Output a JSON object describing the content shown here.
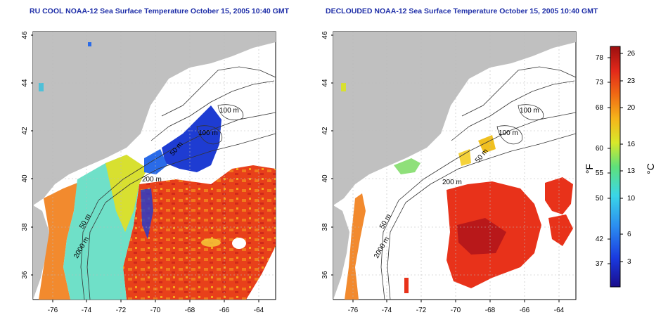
{
  "maps": [
    {
      "title": "RU COOL NOAA-12 Sea Surface Temperature October 15, 2005 10:40 GMT",
      "y_ticks": [
        "46",
        "44",
        "42",
        "40",
        "38",
        "36"
      ],
      "x_ticks": [
        "-76",
        "-74",
        "-72",
        "-70",
        "-68",
        "-66",
        "-64"
      ],
      "contour_labels": [
        "100 m",
        "100 m",
        "50 m",
        "200 m",
        "50 m",
        "2000 m"
      ]
    },
    {
      "title": "DECLOUDED NOAA-12 Sea Surface Temperature October 15, 2005 10:40 GMT",
      "y_ticks": [
        "46",
        "44",
        "42",
        "40",
        "38",
        "36"
      ],
      "x_ticks": [
        "-76",
        "-74",
        "-72",
        "-70",
        "-68",
        "-66",
        "-64"
      ],
      "contour_labels": [
        "100 m",
        "100 m",
        "50 m",
        "200 m",
        "50 m",
        "2000 m"
      ]
    }
  ],
  "colorbar": {
    "f_ticks": [
      "78",
      "73",
      "68",
      "60",
      "55",
      "50",
      "42",
      "37"
    ],
    "c_ticks": [
      "26",
      "23",
      "20",
      "16",
      "13",
      "10",
      "6",
      "3"
    ],
    "f_unit": "°F",
    "c_unit": "°C"
  },
  "colors": {
    "land": "#c0c0c0",
    "title": "#1f2fa8",
    "warm": "#e8321a",
    "cool": "#1e3cd2"
  }
}
